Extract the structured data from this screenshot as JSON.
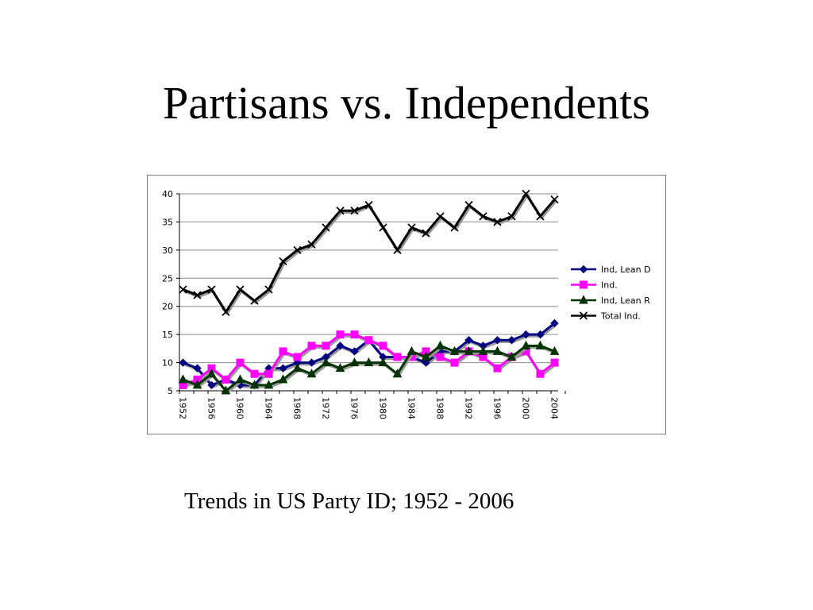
{
  "slide": {
    "title": "Partisans vs. Independents",
    "caption": "Trends in US Party ID; 1952 - 2006"
  },
  "chart_data": {
    "type": "line",
    "x": [
      1952,
      1954,
      1956,
      1958,
      1960,
      1962,
      1964,
      1966,
      1968,
      1970,
      1972,
      1974,
      1976,
      1978,
      1980,
      1982,
      1984,
      1986,
      1988,
      1990,
      1992,
      1994,
      1996,
      1998,
      2000,
      2002,
      2004
    ],
    "x_tick_labels": [
      "1952",
      "1956",
      "1960",
      "1964",
      "1968",
      "1972",
      "1976",
      "1980",
      "1984",
      "1988",
      "1992",
      "1996",
      "2000",
      "2004"
    ],
    "ylim": [
      5,
      40
    ],
    "y_ticks": [
      5,
      10,
      15,
      20,
      25,
      30,
      35,
      40
    ],
    "grid": "horizontal",
    "legend_position": "right",
    "series": [
      {
        "name": "Ind, Lean D",
        "color": "#000080",
        "marker": "diamond",
        "values": [
          10,
          9,
          6,
          7,
          6,
          6,
          9,
          9,
          10,
          10,
          11,
          13,
          12,
          14,
          11,
          11,
          11,
          10,
          12,
          12,
          14,
          13,
          14,
          14,
          15,
          15,
          17
        ]
      },
      {
        "name": "Ind.",
        "color": "#ff00ff",
        "marker": "square",
        "values": [
          6,
          7,
          9,
          7,
          10,
          8,
          8,
          12,
          11,
          13,
          13,
          15,
          15,
          14,
          13,
          11,
          11,
          12,
          11,
          10,
          12,
          11,
          9,
          11,
          12,
          8,
          10
        ]
      },
      {
        "name": "Ind, Lean R",
        "color": "#003300",
        "marker": "triangle",
        "values": [
          7,
          6,
          8,
          5,
          7,
          6,
          6,
          7,
          9,
          8,
          10,
          9,
          10,
          10,
          10,
          8,
          12,
          11,
          13,
          12,
          12,
          12,
          12,
          11,
          13,
          13,
          12
        ]
      },
      {
        "name": "Total Ind.",
        "color": "#000000",
        "marker": "x",
        "values": [
          23,
          22,
          23,
          19,
          23,
          21,
          23,
          28,
          30,
          31,
          34,
          37,
          37,
          38,
          34,
          30,
          34,
          33,
          36,
          34,
          38,
          36,
          35,
          36,
          40,
          36,
          39
        ]
      }
    ]
  }
}
